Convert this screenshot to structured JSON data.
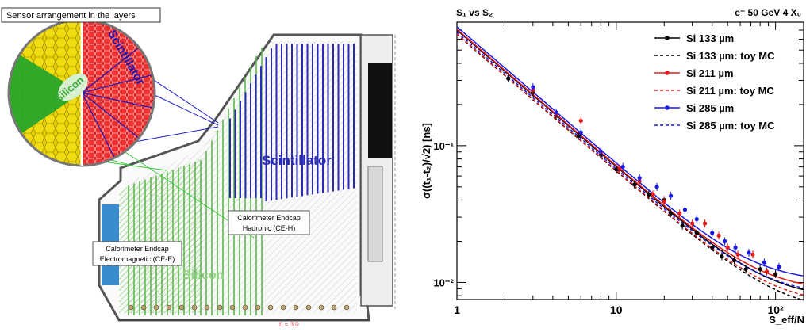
{
  "detector": {
    "inset_title": "Sensor arrangement in the layers",
    "inset_silicon": "Silicon",
    "inset_scintillator": "Scintillator",
    "scintillator_label": "Scintillator",
    "silicon_label": "Silicon",
    "ceh_line1": "Calorimeter Endcap",
    "ceh_line2": "Hadronic (CE-H)",
    "cee_line1": "Calorimeter Endcap",
    "cee_line2": "Electromagnetic (CE-E)",
    "eta_label": "η = 3.0",
    "colors": {
      "silicon": "#7ccf6a",
      "scintillator": "#2a2ab8",
      "hex_yellow": "#e8d000",
      "hex_red": "#e41a1a",
      "hex_green": "#27a52a"
    }
  },
  "chart_data": {
    "type": "line",
    "title_left": "S₁ vs S₂",
    "title_right": "e⁻ 50 GeV 4 X₀",
    "xlabel": "S_eff/N",
    "ylabel": "σ((t₁-t₂)/√2) [ns]",
    "x_scale": "log",
    "y_scale": "log",
    "xlim": [
      1,
      150
    ],
    "ylim": [
      0.0075,
      0.8
    ],
    "x_ticks": [
      1,
      10,
      100
    ],
    "x_tick_labels": [
      "1",
      "10",
      "10²"
    ],
    "y_ticks": [
      0.01,
      0.1
    ],
    "y_tick_labels": [
      "10⁻²",
      "10⁻¹"
    ],
    "legend_position": "top-right",
    "series": [
      {
        "name": "Si 133 µm",
        "color": "#000000",
        "style": "solid",
        "fit": {
          "a": 0.7,
          "c": 0.0075
        },
        "points": [
          [
            2.1,
            0.31
          ],
          [
            3.0,
            0.245
          ],
          [
            4.2,
            0.165
          ],
          [
            5.8,
            0.118
          ],
          [
            8.0,
            0.086
          ],
          [
            10.0,
            0.067
          ],
          [
            13.0,
            0.052
          ],
          [
            16.0,
            0.044
          ],
          [
            20.0,
            0.04
          ],
          [
            22.0,
            0.032
          ],
          [
            26.0,
            0.026
          ],
          [
            32.0,
            0.023
          ],
          [
            40.0,
            0.018
          ],
          [
            46.0,
            0.0155
          ],
          [
            55.0,
            0.0145
          ],
          [
            65.0,
            0.0125
          ],
          [
            80.0,
            0.0125
          ],
          [
            100.0,
            0.0115
          ]
        ]
      },
      {
        "name": "Si 133 µm: toy MC",
        "color": "#000000",
        "style": "dashed",
        "fit": {
          "a": 0.65,
          "c": 0.006
        }
      },
      {
        "name": "Si 211 µm",
        "color": "#e41a1a",
        "style": "solid",
        "fit": {
          "a": 0.71,
          "c": 0.0085
        },
        "points": [
          [
            3.0,
            0.255
          ],
          [
            4.2,
            0.17
          ],
          [
            6.0,
            0.152
          ],
          [
            8.0,
            0.09
          ],
          [
            10.5,
            0.068
          ],
          [
            14.0,
            0.055
          ],
          [
            17.0,
            0.044
          ],
          [
            20.0,
            0.039
          ],
          [
            25.0,
            0.032
          ],
          [
            30.0,
            0.027
          ],
          [
            36.0,
            0.027
          ],
          [
            44.0,
            0.022
          ],
          [
            50.0,
            0.018
          ],
          [
            58.0,
            0.016
          ],
          [
            72.0,
            0.016
          ],
          [
            88.0,
            0.012
          ]
        ]
      },
      {
        "name": "Si 211 µm: toy MC",
        "color": "#e41a1a",
        "style": "dashed",
        "fit": {
          "a": 0.655,
          "c": 0.0068
        }
      },
      {
        "name": "Si 285 µm",
        "color": "#1a1ae4",
        "style": "solid",
        "fit": {
          "a": 0.74,
          "c": 0.01
        },
        "points": [
          [
            3.0,
            0.268
          ],
          [
            4.2,
            0.175
          ],
          [
            6.0,
            0.125
          ],
          [
            8.0,
            0.091
          ],
          [
            11.0,
            0.07
          ],
          [
            14.0,
            0.058
          ],
          [
            18.0,
            0.05
          ],
          [
            22.0,
            0.043
          ],
          [
            27.0,
            0.034
          ],
          [
            32.0,
            0.029
          ],
          [
            40.0,
            0.023
          ],
          [
            48.0,
            0.02
          ],
          [
            56.0,
            0.018
          ],
          [
            68.0,
            0.0165
          ],
          [
            85.0,
            0.014
          ],
          [
            105.0,
            0.013
          ]
        ]
      },
      {
        "name": "Si 285 µm: toy MC",
        "color": "#1a1ae4",
        "style": "dashed",
        "fit": {
          "a": 0.675,
          "c": 0.0079
        }
      }
    ]
  }
}
